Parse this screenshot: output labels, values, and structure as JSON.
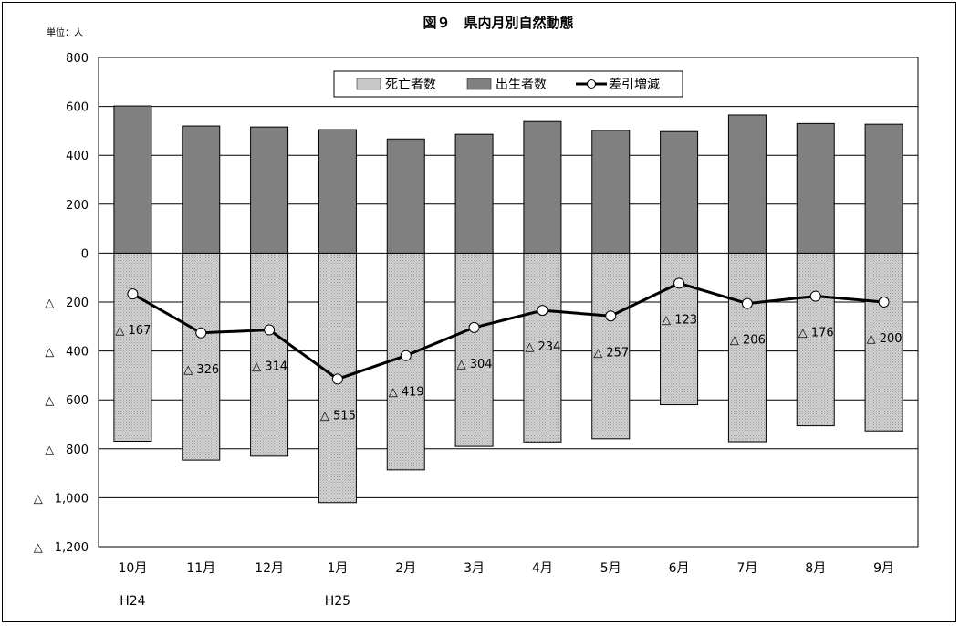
{
  "chart_data": {
    "type": "bar",
    "title": "図９　県内月別自然動態",
    "unit_label": "単位：人",
    "categories": [
      "10月",
      "11月",
      "12月",
      "1月",
      "2月",
      "3月",
      "4月",
      "5月",
      "6月",
      "7月",
      "8月",
      "9月"
    ],
    "year_markers": [
      {
        "category_index": 0,
        "label": "H24"
      },
      {
        "category_index": 3,
        "label": "H25"
      }
    ],
    "series": [
      {
        "name": "死亡者数",
        "type": "bar",
        "color": "#c8c8c8",
        "values": [
          -769,
          -846,
          -830,
          -1020,
          -886,
          -790,
          -772,
          -759,
          -620,
          -771,
          -706,
          -727
        ]
      },
      {
        "name": "出生者数",
        "type": "bar",
        "color": "#808080",
        "values": [
          602,
          520,
          516,
          505,
          467,
          486,
          538,
          502,
          497,
          565,
          530,
          527
        ]
      },
      {
        "name": "差引増減",
        "type": "line",
        "color": "#000000",
        "values": [
          -167,
          -326,
          -314,
          -515,
          -419,
          -304,
          -234,
          -257,
          -123,
          -206,
          -176,
          -200
        ]
      }
    ],
    "data_labels": [
      "△ 167",
      "△ 326",
      "△ 314",
      "△ 515",
      "△ 419",
      "△ 304",
      "△ 234",
      "△ 257",
      "△ 123",
      "△ 206",
      "△ 176",
      "△ 200"
    ],
    "ylim": [
      -1200,
      800
    ],
    "yticks": [
      800,
      600,
      400,
      200,
      0,
      -200,
      -400,
      -600,
      -800,
      -1000,
      -1200
    ],
    "ytick_labels": [
      "800",
      "600",
      "400",
      "200",
      "0",
      "△　200",
      "△　400",
      "△　600",
      "△　800",
      "△　1,000",
      "△　1,200"
    ],
    "grid": true,
    "legend_position": "top-center",
    "xlabel": "",
    "ylabel": ""
  }
}
